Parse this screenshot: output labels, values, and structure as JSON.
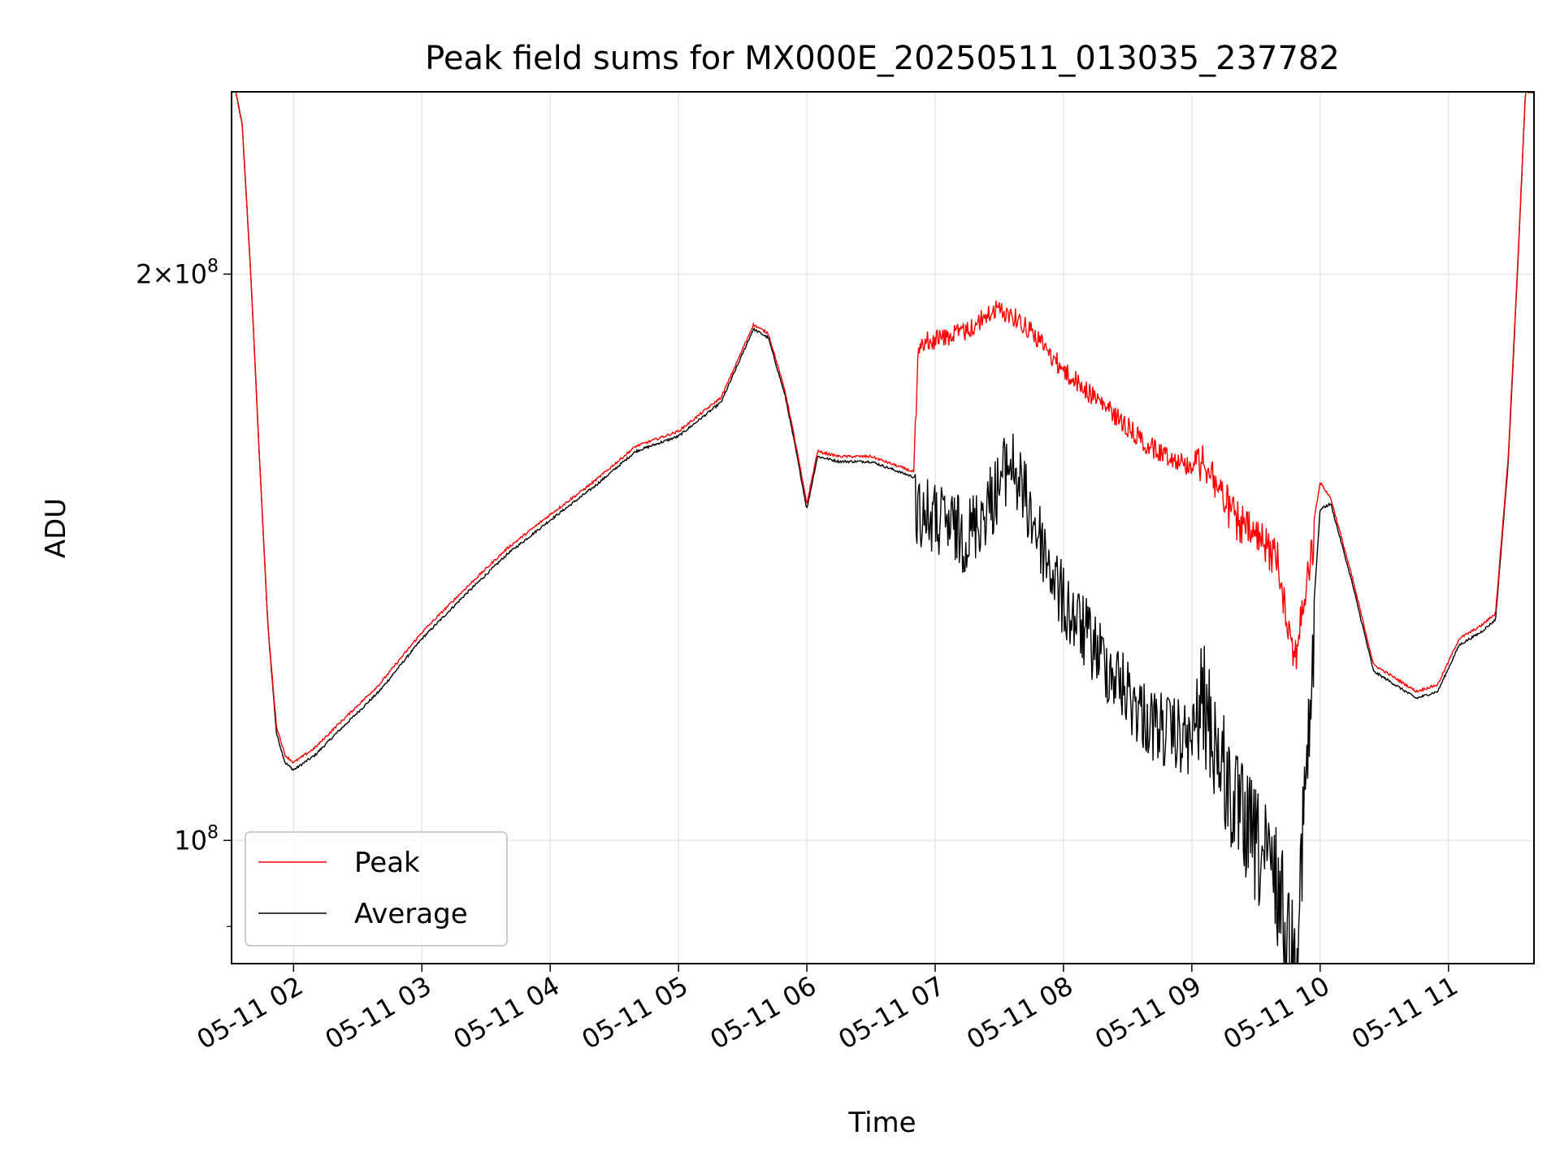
{
  "chart_data": {
    "type": "line",
    "title": "Peak field sums for MX000E_20250511_013035_237782",
    "xlabel": "Time",
    "ylabel": "ADU",
    "x_ticks": [
      "05-11 02",
      "05-11 03",
      "05-11 04",
      "05-11 05",
      "05-11 06",
      "05-11 07",
      "05-11 08",
      "05-11 09",
      "05-11 10",
      "05-11 11"
    ],
    "y_scale": "log",
    "y_ticks": [
      {
        "value": 200000000,
        "mantissa": "2",
        "exponent": "8",
        "with_mantissa": true
      },
      {
        "value": 100000000,
        "mantissa": "",
        "exponent": "8",
        "with_mantissa": false
      }
    ],
    "xlim": [
      "2025-05-11 01:31",
      "2025-05-11 11:40"
    ],
    "ylim": [
      86000000,
      250000000
    ],
    "grid": true,
    "legend": {
      "position": "lower-left",
      "entries": [
        "Peak",
        "Average"
      ]
    },
    "series": [
      {
        "name": "Peak",
        "color": "#ff0000",
        "x": [
          "2025-05-11 01:31",
          "2025-05-11 01:33",
          "2025-05-11 01:36",
          "2025-05-11 01:40",
          "2025-05-11 01:44",
          "2025-05-11 01:48",
          "2025-05-11 01:52",
          "2025-05-11 01:56",
          "2025-05-11 02:00",
          "2025-05-11 02:10",
          "2025-05-11 02:20",
          "2025-05-11 02:40",
          "2025-05-11 03:00",
          "2025-05-11 03:20",
          "2025-05-11 03:40",
          "2025-05-11 04:00",
          "2025-05-11 04:20",
          "2025-05-11 04:40",
          "2025-05-11 05:00",
          "2025-05-11 05:20",
          "2025-05-11 05:35",
          "2025-05-11 05:42",
          "2025-05-11 05:50",
          "2025-05-11 05:55",
          "2025-05-11 06:00",
          "2025-05-11 06:05",
          "2025-05-11 06:15",
          "2025-05-11 06:30",
          "2025-05-11 06:50",
          "2025-05-11 06:52",
          "2025-05-11 07:00",
          "2025-05-11 07:15",
          "2025-05-11 07:28",
          "2025-05-11 07:35",
          "2025-05-11 07:45",
          "2025-05-11 08:00",
          "2025-05-11 08:20",
          "2025-05-11 08:40",
          "2025-05-11 09:00",
          "2025-05-11 09:05",
          "2025-05-11 09:20",
          "2025-05-11 09:40",
          "2025-05-11 09:48",
          "2025-05-11 10:00",
          "2025-05-11 10:05",
          "2025-05-11 10:15",
          "2025-05-11 10:25",
          "2025-05-11 10:35",
          "2025-05-11 10:45",
          "2025-05-11 10:55",
          "2025-05-11 11:05",
          "2025-05-11 11:15",
          "2025-05-11 11:22",
          "2025-05-11 11:28",
          "2025-05-11 11:33",
          "2025-05-11 11:36"
        ],
        "y": [
          250000000,
          250000000,
          240000000,
          200000000,
          160000000,
          130000000,
          115000000,
          111000000,
          110000000,
          112000000,
          115000000,
          121000000,
          129000000,
          136000000,
          143000000,
          149000000,
          155000000,
          162000000,
          165000000,
          172000000,
          188000000,
          186000000,
          173000000,
          162000000,
          151000000,
          161000000,
          160000000,
          160000000,
          157000000,
          186000000,
          187000000,
          189000000,
          194000000,
          193000000,
          189000000,
          180000000,
          172000000,
          164000000,
          160000000,
          164000000,
          152000000,
          145000000,
          128000000,
          155000000,
          152000000,
          138000000,
          124000000,
          122000000,
          120000000,
          121000000,
          128000000,
          130000000,
          132000000,
          160000000,
          210000000,
          250000000
        ]
      },
      {
        "name": "Average",
        "color": "#000000",
        "x": [
          "2025-05-11 01:31",
          "2025-05-11 01:33",
          "2025-05-11 01:36",
          "2025-05-11 01:40",
          "2025-05-11 01:44",
          "2025-05-11 01:48",
          "2025-05-11 01:52",
          "2025-05-11 01:56",
          "2025-05-11 02:00",
          "2025-05-11 02:10",
          "2025-05-11 02:20",
          "2025-05-11 02:40",
          "2025-05-11 03:00",
          "2025-05-11 03:20",
          "2025-05-11 03:40",
          "2025-05-11 04:00",
          "2025-05-11 04:20",
          "2025-05-11 04:40",
          "2025-05-11 05:00",
          "2025-05-11 05:20",
          "2025-05-11 05:35",
          "2025-05-11 05:42",
          "2025-05-11 05:50",
          "2025-05-11 05:55",
          "2025-05-11 06:00",
          "2025-05-11 06:05",
          "2025-05-11 06:15",
          "2025-05-11 06:30",
          "2025-05-11 06:50",
          "2025-05-11 06:52",
          "2025-05-11 07:00",
          "2025-05-11 07:15",
          "2025-05-11 07:28",
          "2025-05-11 07:35",
          "2025-05-11 07:45",
          "2025-05-11 08:00",
          "2025-05-11 08:20",
          "2025-05-11 08:40",
          "2025-05-11 09:00",
          "2025-05-11 09:05",
          "2025-05-11 09:20",
          "2025-05-11 09:40",
          "2025-05-11 09:48",
          "2025-05-11 10:00",
          "2025-05-11 10:05",
          "2025-05-11 10:15",
          "2025-05-11 10:25",
          "2025-05-11 10:35",
          "2025-05-11 10:45",
          "2025-05-11 10:55",
          "2025-05-11 11:05",
          "2025-05-11 11:15",
          "2025-05-11 11:22",
          "2025-05-11 11:28",
          "2025-05-11 11:33",
          "2025-05-11 11:36"
        ],
        "y": [
          250000000,
          250000000,
          240000000,
          200000000,
          160000000,
          130000000,
          114000000,
          110000000,
          109000000,
          111000000,
          114000000,
          120000000,
          128000000,
          135000000,
          142000000,
          148000000,
          154000000,
          161000000,
          164000000,
          171000000,
          187000000,
          185000000,
          172000000,
          161000000,
          150000000,
          160000000,
          159000000,
          159000000,
          156000000,
          157000000,
          155000000,
          152000000,
          160000000,
          167000000,
          156000000,
          140000000,
          130000000,
          121000000,
          118000000,
          128000000,
          112000000,
          102000000,
          93000000,
          150000000,
          151000000,
          137000000,
          123000000,
          121000000,
          119000000,
          120000000,
          127000000,
          129000000,
          131000000,
          159000000,
          209000000,
          250000000
        ]
      }
    ]
  }
}
